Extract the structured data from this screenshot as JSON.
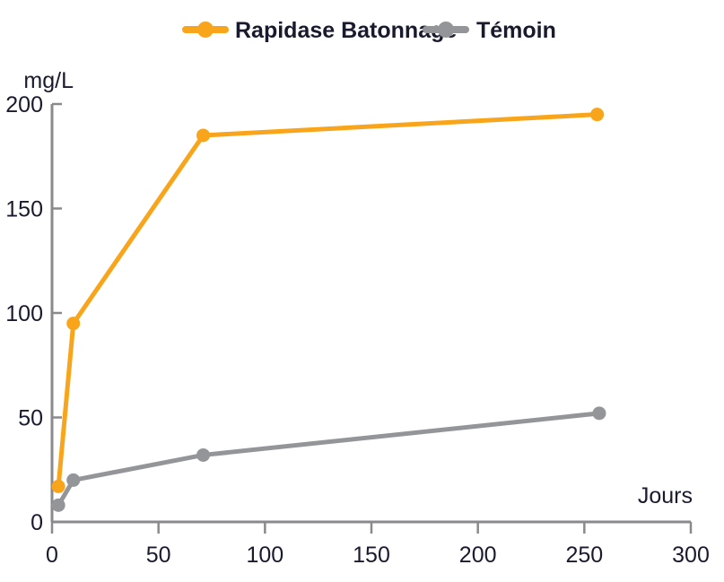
{
  "chart_data": {
    "type": "line",
    "title": "",
    "xlabel": "Jours",
    "ylabel": "mg/L",
    "xlim": [
      0,
      300
    ],
    "ylim": [
      0,
      200
    ],
    "xticks": [
      0,
      50,
      100,
      150,
      200,
      250,
      300
    ],
    "yticks": [
      0,
      50,
      100,
      150,
      200
    ],
    "grid": false,
    "legend_position": "top",
    "series": [
      {
        "name": "Rapidase Batonnage",
        "color": "#f9a51b",
        "x": [
          3,
          10,
          71,
          256
        ],
        "y": [
          17,
          95,
          185,
          195
        ]
      },
      {
        "name": "Témoin",
        "color": "#939598",
        "x": [
          3,
          10,
          71,
          257
        ],
        "y": [
          8,
          20,
          32,
          52
        ]
      }
    ]
  },
  "axis": {
    "color": "#8a8a8d"
  }
}
